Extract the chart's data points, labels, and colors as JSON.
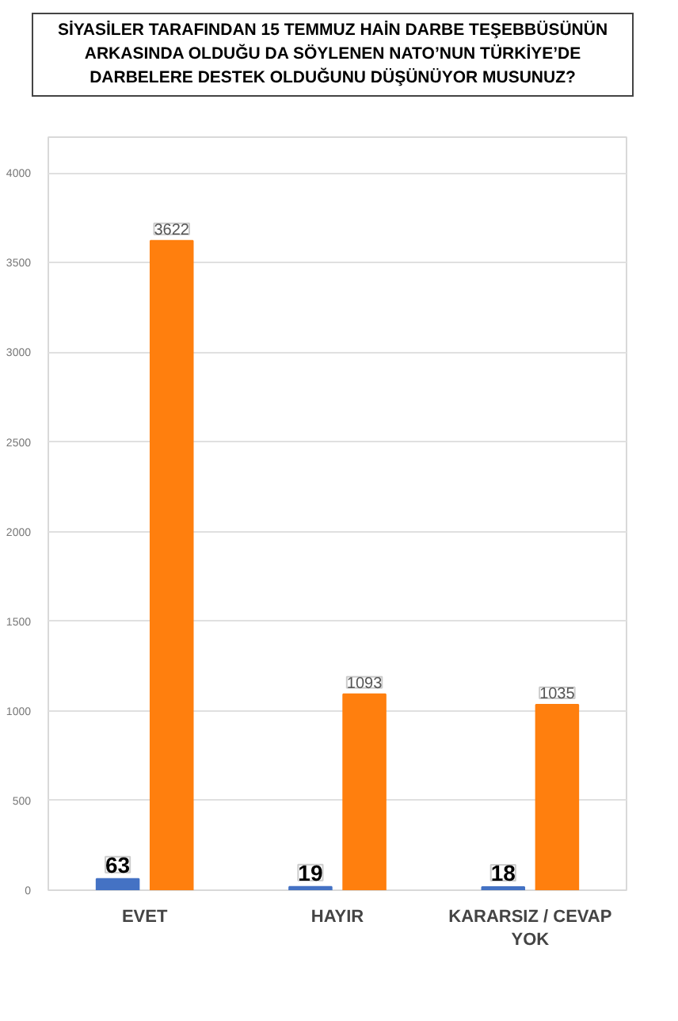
{
  "chart_data": {
    "type": "bar",
    "title": "SİYASİLER TARAFINDAN 15 TEMMUZ HAİN DARBE TEŞEBBÜSÜNÜN ARKASINDA OLDUĞU DA SÖYLENEN NATO’NUN TÜRKİYE’DE DARBELERE DESTEK OLDUĞUNU DÜŞÜNÜYOR MUSUNUZ?",
    "categories": [
      "EVET",
      "HAYIR",
      "KARARSIZ / CEVAP YOK"
    ],
    "series": [
      {
        "color": "#4472c4",
        "values": [
          63,
          19,
          18
        ]
      },
      {
        "color": "#ff7f0e",
        "values": [
          3622,
          1093,
          1035
        ]
      }
    ],
    "ylim": [
      0,
      4200
    ],
    "yticks": [
      0,
      500,
      1000,
      1500,
      2000,
      2500,
      3000,
      3500,
      4000
    ],
    "grid": "y",
    "data_labels": true
  }
}
